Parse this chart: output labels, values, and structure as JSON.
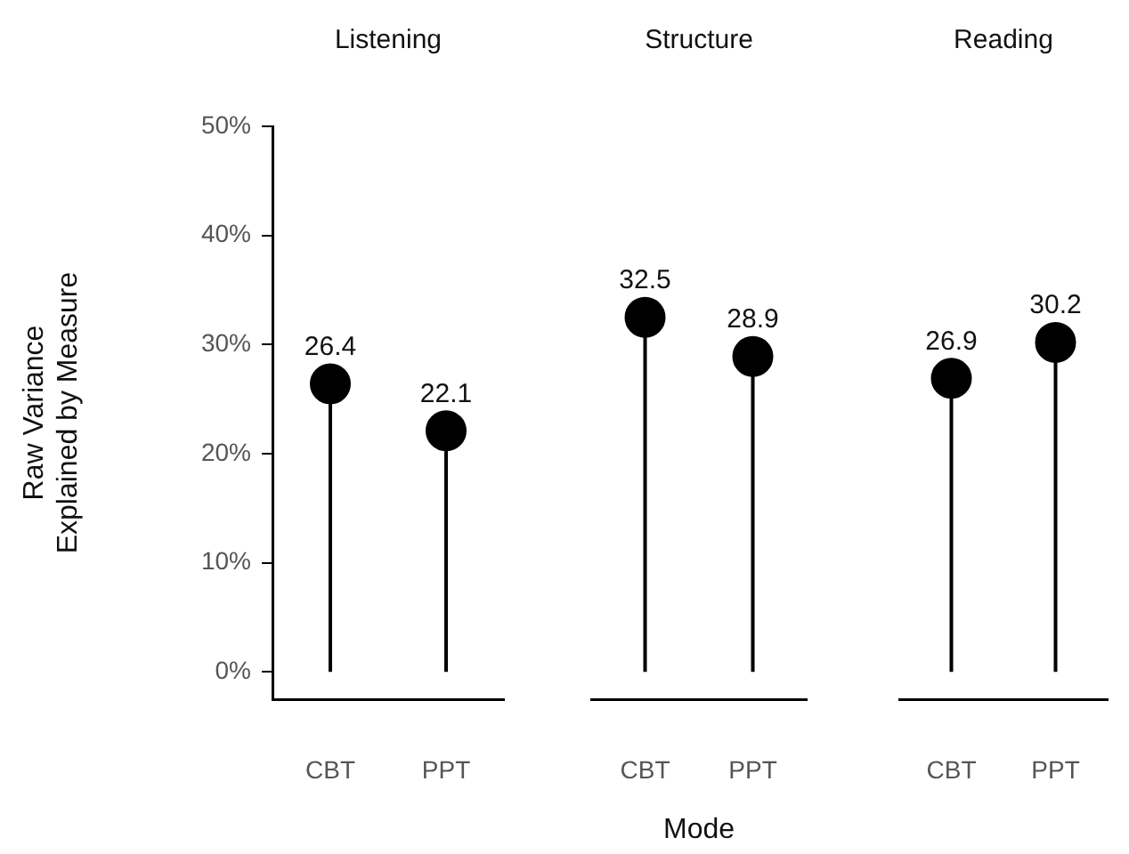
{
  "chart_data": [
    {
      "type": "lollipop",
      "title": "Listening",
      "ylabel": "Raw Variance\nExplained by Measure",
      "categories": [
        "CBT",
        "PPT"
      ],
      "values": [
        26.4,
        22.1
      ],
      "color": "#000000",
      "ylim": [
        -2.5,
        50
      ],
      "yticks": [
        {
          "value": 0,
          "label": "0%"
        },
        {
          "value": 10,
          "label": "10%"
        },
        {
          "value": 20,
          "label": "20%"
        },
        {
          "value": 30,
          "label": "30%"
        },
        {
          "value": 40,
          "label": "40%"
        },
        {
          "value": 50,
          "label": "50%"
        }
      ],
      "data_labels": true,
      "marker": "circle"
    },
    {
      "type": "lollipop",
      "title": "Structure",
      "xlabel": "Mode",
      "categories": [
        "CBT",
        "PPT"
      ],
      "values": [
        32.5,
        28.9
      ],
      "color": "#000000",
      "ylim": [
        -2.5,
        50
      ],
      "tick_labels": "x",
      "data_labels": true,
      "marker": "circle"
    },
    {
      "type": "lollipop",
      "title": "Reading",
      "categories": [
        "CBT",
        "PPT"
      ],
      "values": [
        26.9,
        30.2
      ],
      "color": "#000000",
      "ylim": [
        -2.5,
        50
      ],
      "tick_labels": "x",
      "data_labels": true,
      "marker": "circle"
    }
  ]
}
